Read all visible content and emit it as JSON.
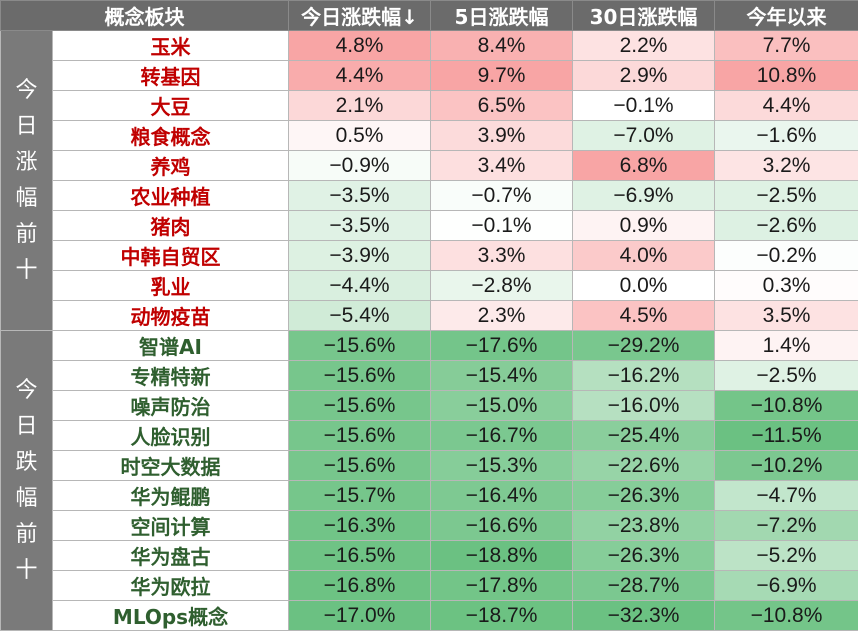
{
  "header": {
    "col_name": "概念板块",
    "col_today": "今日涨跌幅↓",
    "col_5d": "5日涨跌幅",
    "col_30d": "30日涨跌幅",
    "col_ytd": "今年以来"
  },
  "groups": [
    {
      "label": "今日涨幅前十",
      "direction": "up",
      "rows": [
        {
          "name": "玉米",
          "today": "4.8%",
          "d5": "8.4%",
          "d30": "2.2%",
          "ytd": "7.7%"
        },
        {
          "name": "转基因",
          "today": "4.4%",
          "d5": "9.7%",
          "d30": "2.9%",
          "ytd": "10.8%"
        },
        {
          "name": "大豆",
          "today": "2.1%",
          "d5": "6.5%",
          "d30": "−0.1%",
          "ytd": "4.4%"
        },
        {
          "name": "粮食概念",
          "today": "0.5%",
          "d5": "3.9%",
          "d30": "−7.0%",
          "ytd": "−1.6%"
        },
        {
          "name": "养鸡",
          "today": "−0.9%",
          "d5": "3.4%",
          "d30": "6.8%",
          "ytd": "3.2%"
        },
        {
          "name": "农业种植",
          "today": "−3.5%",
          "d5": "−0.7%",
          "d30": "−6.9%",
          "ytd": "−2.5%"
        },
        {
          "name": "猪肉",
          "today": "−3.5%",
          "d5": "−0.1%",
          "d30": "0.9%",
          "ytd": "−2.6%"
        },
        {
          "name": "中韩自贸区",
          "today": "−3.9%",
          "d5": "3.3%",
          "d30": "4.0%",
          "ytd": "−0.2%"
        },
        {
          "name": "乳业",
          "today": "−4.4%",
          "d5": "−2.8%",
          "d30": "0.0%",
          "ytd": "0.3%"
        },
        {
          "name": "动物疫苗",
          "today": "−5.4%",
          "d5": "2.3%",
          "d30": "4.5%",
          "ytd": "3.5%"
        }
      ]
    },
    {
      "label": "今日跌幅前十",
      "direction": "down",
      "rows": [
        {
          "name": "智谱AI",
          "today": "−15.6%",
          "d5": "−17.6%",
          "d30": "−29.2%",
          "ytd": "1.4%"
        },
        {
          "name": "专精特新",
          "today": "−15.6%",
          "d5": "−15.4%",
          "d30": "−16.2%",
          "ytd": "−2.5%"
        },
        {
          "name": "噪声防治",
          "today": "−15.6%",
          "d5": "−15.0%",
          "d30": "−16.0%",
          "ytd": "−10.8%"
        },
        {
          "name": "人脸识别",
          "today": "−15.6%",
          "d5": "−16.7%",
          "d30": "−25.4%",
          "ytd": "−11.5%"
        },
        {
          "name": "时空大数据",
          "today": "−15.6%",
          "d5": "−15.3%",
          "d30": "−22.6%",
          "ytd": "−10.2%"
        },
        {
          "name": "华为鲲鹏",
          "today": "−15.7%",
          "d5": "−16.4%",
          "d30": "−26.3%",
          "ytd": "−4.7%"
        },
        {
          "name": "空间计算",
          "today": "−16.3%",
          "d5": "−16.6%",
          "d30": "−23.8%",
          "ytd": "−7.2%"
        },
        {
          "name": "华为盘古",
          "today": "−16.5%",
          "d5": "−18.8%",
          "d30": "−26.3%",
          "ytd": "−5.2%"
        },
        {
          "name": "华为欧拉",
          "today": "−16.8%",
          "d5": "−17.8%",
          "d30": "−28.7%",
          "ytd": "−6.9%"
        },
        {
          "name": "MLOps概念",
          "today": "−17.0%",
          "d5": "−18.7%",
          "d30": "−32.3%",
          "ytd": "−10.8%"
        }
      ]
    }
  ],
  "colors": {
    "header_bg": "#6b6b6b",
    "group_bg": "#7a7a7a",
    "up_text": "#c00000",
    "down_text": "#2f5f2f",
    "positive_max": "#f8a0a0",
    "negative_max": "#63be7b",
    "neutral": "#ffffff"
  }
}
